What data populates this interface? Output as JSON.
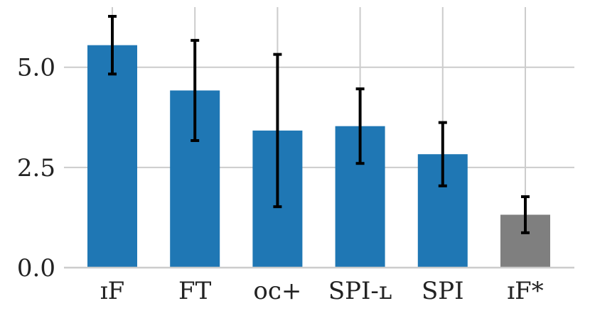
{
  "chart_data": {
    "type": "bar",
    "title": "",
    "xlabel": "",
    "ylabel": "",
    "categories": [
      "IF",
      "FT",
      "OC+",
      "SPI-L",
      "SPI",
      "IF*"
    ],
    "category_display": [
      "ɪF",
      "FT",
      "ᴏᴄ+",
      "SPI-ʟ",
      "SPI",
      "ɪF*"
    ],
    "values": [
      5.55,
      4.42,
      3.42,
      3.53,
      2.83,
      1.32
    ],
    "error": [
      0.72,
      1.25,
      1.9,
      0.93,
      0.79,
      0.45
    ],
    "bar_colors": [
      "#1f77b4",
      "#1f77b4",
      "#1f77b4",
      "#1f77b4",
      "#1f77b4",
      "#7f7f7f"
    ],
    "ylim": [
      0,
      6.5
    ],
    "yticks": [
      0.0,
      2.5,
      5.0
    ],
    "ytick_labels": [
      "0.0",
      "2.5",
      "5.0"
    ],
    "grid": true
  }
}
